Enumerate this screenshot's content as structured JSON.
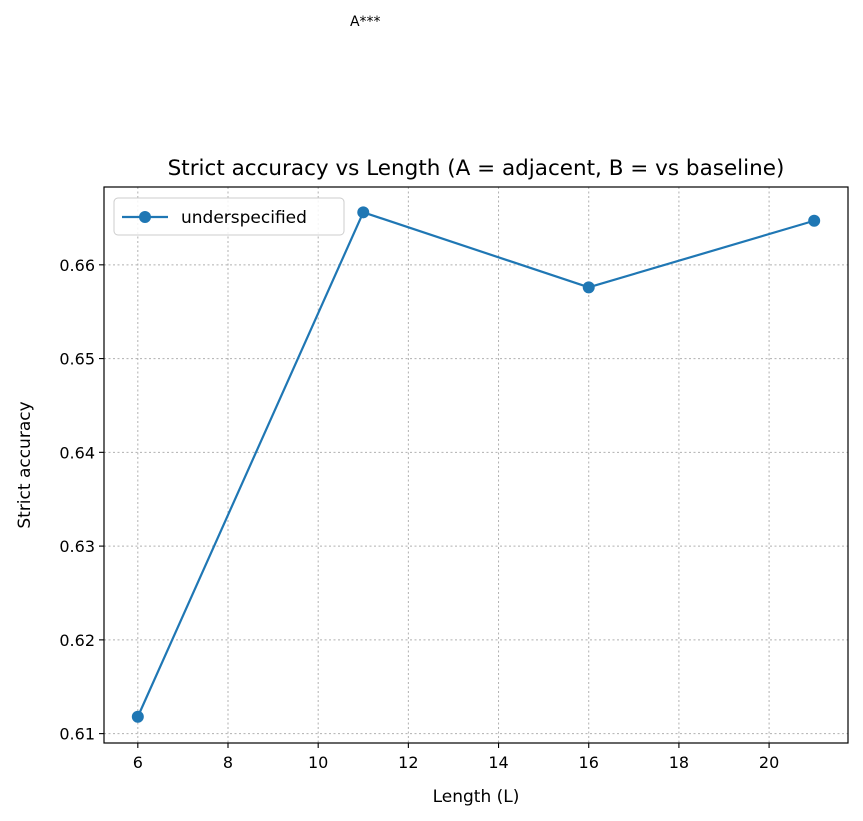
{
  "chart_data": {
    "type": "line",
    "title": "Strict accuracy vs Length (A = adjacent, B = vs baseline)",
    "xlabel": "Length (L)",
    "ylabel": "Strict accuracy",
    "xlim": [
      5.25,
      21.75
    ],
    "ylim": [
      0.609,
      0.6683
    ],
    "x_ticks": [
      6,
      8,
      10,
      12,
      14,
      16,
      18,
      20
    ],
    "y_ticks": [
      0.61,
      0.62,
      0.63,
      0.64,
      0.65,
      0.66
    ],
    "y_tick_labels": [
      "0.61",
      "0.62",
      "0.63",
      "0.64",
      "0.65",
      "0.66"
    ],
    "grid": true,
    "legend_position": "upper left",
    "series": [
      {
        "name": "underspecified",
        "color": "#1f77b4",
        "marker": "circle",
        "x": [
          6,
          11,
          16,
          21
        ],
        "y": [
          0.6118,
          0.6656,
          0.6576,
          0.6647
        ]
      }
    ],
    "annotations": [
      {
        "text": "A***",
        "x": 11.0
      }
    ]
  }
}
